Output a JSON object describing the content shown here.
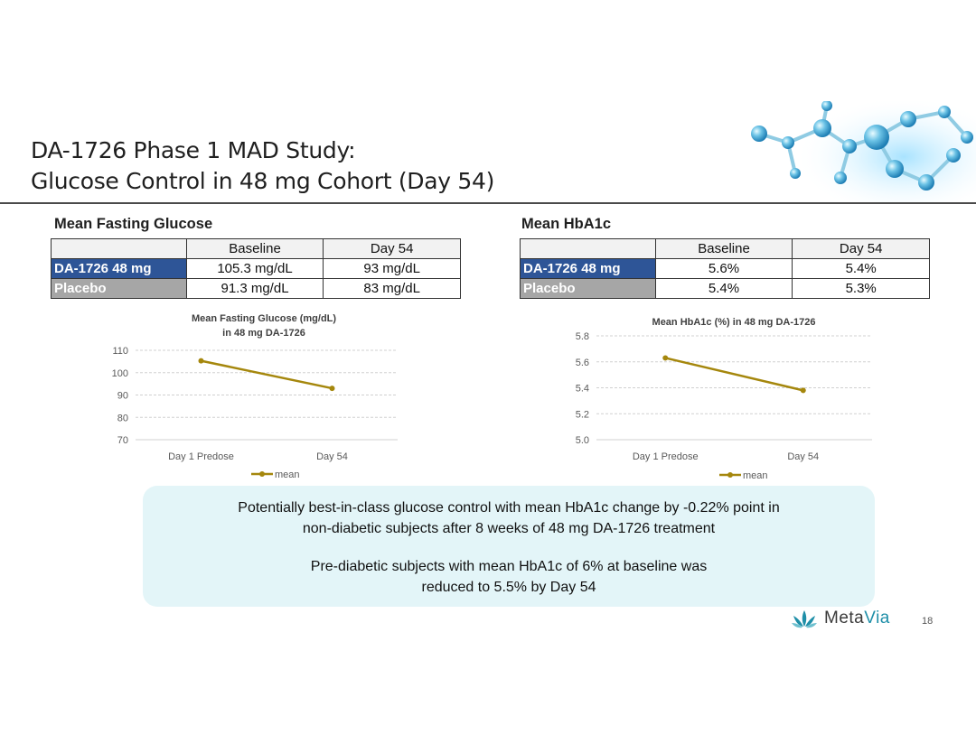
{
  "slide": {
    "title_line1": "DA-1726 Phase 1 MAD Study:",
    "title_line2": "Glucose Control in 48 mg Cohort (Day 54)",
    "page_number": "18",
    "logo_text_a": "Meta",
    "logo_text_b": "Via",
    "colors": {
      "line": "#a5870d",
      "drug_row": "#2e5597",
      "placebo_row": "#a6a6a6",
      "callout_bg": "#e3f5f8"
    }
  },
  "fasting": {
    "section_title": "Mean Fasting Glucose",
    "table": {
      "headers": [
        "",
        "Baseline",
        "Day 54"
      ],
      "rows": [
        {
          "label": "DA-1726 48 mg",
          "baseline": "105.3 mg/dL",
          "day54": "93 mg/dL"
        },
        {
          "label": "Placebo",
          "baseline": "91.3 mg/dL",
          "day54": "83 mg/dL"
        }
      ]
    }
  },
  "hba1c": {
    "section_title": "Mean HbA1c",
    "table": {
      "headers": [
        "",
        "Baseline",
        "Day 54"
      ],
      "rows": [
        {
          "label": "DA-1726 48 mg",
          "baseline": "5.6%",
          "day54": "5.4%"
        },
        {
          "label": "Placebo",
          "baseline": "5.4%",
          "day54": "5.3%"
        }
      ]
    }
  },
  "chart_data": [
    {
      "type": "line",
      "title": "Mean Fasting Glucose (mg/dL) in 48 mg DA-1726",
      "title_lines": [
        "Mean Fasting Glucose (mg/dL)",
        "in 48 mg DA-1726"
      ],
      "categories": [
        "Day 1 Predose",
        "Day 54"
      ],
      "series": [
        {
          "name": "mean",
          "values": [
            105.3,
            93
          ]
        }
      ],
      "yticks": [
        "70",
        "80",
        "90",
        "100",
        "110"
      ],
      "ylim": [
        70,
        110
      ],
      "xlabel": "",
      "ylabel": "",
      "legend": "bottom"
    },
    {
      "type": "line",
      "title": "Mean HbA1c (%) in 48 mg DA-1726",
      "title_lines": [
        "Mean HbA1c (%) in 48 mg DA-1726"
      ],
      "categories": [
        "Day 1 Predose",
        "Day 54"
      ],
      "series": [
        {
          "name": "mean",
          "values": [
            5.63,
            5.38
          ]
        }
      ],
      "yticks": [
        "5.0",
        "5.2",
        "5.4",
        "5.6",
        "5.8"
      ],
      "ylim": [
        5.0,
        5.8
      ],
      "xlabel": "",
      "ylabel": "",
      "legend": "bottom"
    }
  ],
  "callout": {
    "p1_line1": "Potentially best-in-class glucose control with mean HbA1c change by -0.22% point in",
    "p1_line2": "non-diabetic subjects after 8 weeks of 48 mg DA-1726 treatment",
    "p2_line1": "Pre-diabetic subjects with mean HbA1c of 6% at baseline was",
    "p2_line2": "reduced to 5.5% by Day 54"
  }
}
